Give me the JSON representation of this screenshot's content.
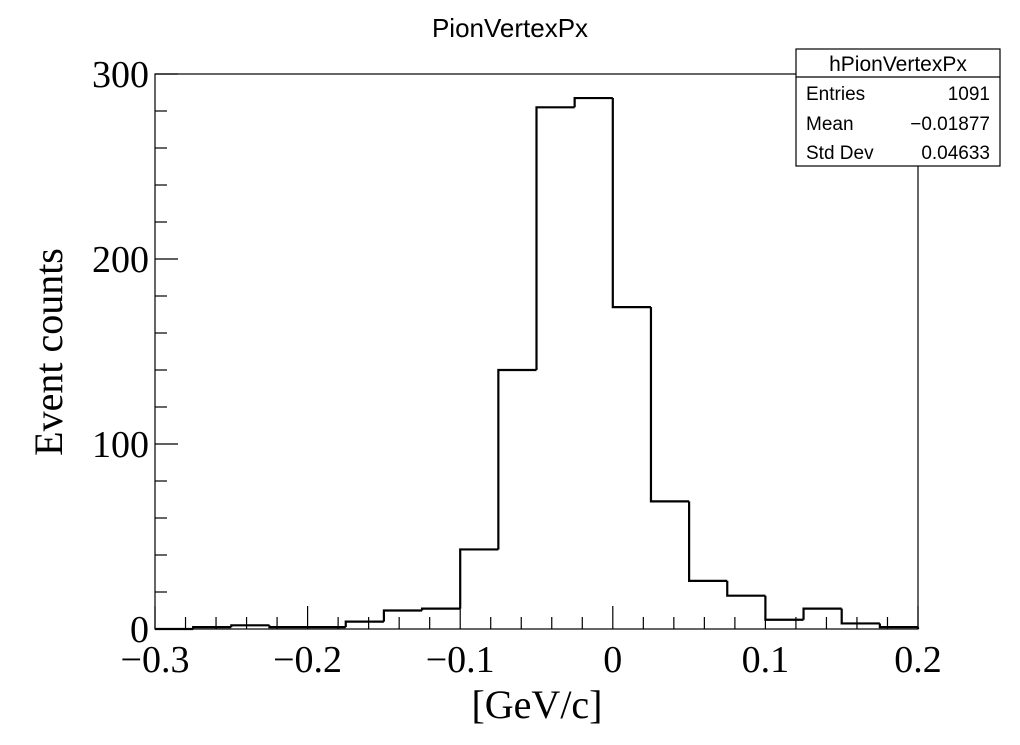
{
  "chart_data": {
    "type": "bar",
    "title": "PionVertexPx",
    "xlabel": "[GeV/c]",
    "ylabel": "Event counts",
    "xlim": [
      -0.3,
      0.2
    ],
    "ylim": [
      0,
      300
    ],
    "bin_width": 0.025,
    "x_ticks": [
      {
        "value": -0.3,
        "label": "−0.3"
      },
      {
        "value": -0.2,
        "label": "−0.2"
      },
      {
        "value": -0.1,
        "label": "−0.1"
      },
      {
        "value": 0,
        "label": "0"
      },
      {
        "value": 0.1,
        "label": "0.1"
      },
      {
        "value": 0.2,
        "label": "0.2"
      }
    ],
    "y_ticks": [
      {
        "value": 0,
        "label": "0"
      },
      {
        "value": 100,
        "label": "100"
      },
      {
        "value": 200,
        "label": "200"
      },
      {
        "value": 300,
        "label": "300"
      }
    ],
    "bins": [
      {
        "low": -0.3,
        "high": -0.275,
        "count": 0
      },
      {
        "low": -0.275,
        "high": -0.25,
        "count": 1
      },
      {
        "low": -0.25,
        "high": -0.225,
        "count": 2
      },
      {
        "low": -0.225,
        "high": -0.2,
        "count": 1
      },
      {
        "low": -0.2,
        "high": -0.175,
        "count": 1
      },
      {
        "low": -0.175,
        "high": -0.15,
        "count": 4
      },
      {
        "low": -0.15,
        "high": -0.125,
        "count": 10
      },
      {
        "low": -0.125,
        "high": -0.1,
        "count": 11
      },
      {
        "low": -0.1,
        "high": -0.075,
        "count": 43
      },
      {
        "low": -0.075,
        "high": -0.05,
        "count": 140
      },
      {
        "low": -0.05,
        "high": -0.025,
        "count": 282
      },
      {
        "low": -0.025,
        "high": 0,
        "count": 287
      },
      {
        "low": 0,
        "high": 0.025,
        "count": 174
      },
      {
        "low": 0.025,
        "high": 0.05,
        "count": 69
      },
      {
        "low": 0.05,
        "high": 0.075,
        "count": 26
      },
      {
        "low": 0.075,
        "high": 0.1,
        "count": 18
      },
      {
        "low": 0.1,
        "high": 0.125,
        "count": 5
      },
      {
        "low": 0.125,
        "high": 0.15,
        "count": 11
      },
      {
        "low": 0.15,
        "high": 0.175,
        "count": 3
      },
      {
        "low": 0.175,
        "high": 0.2,
        "count": 1
      }
    ],
    "line_color": "#000000",
    "grid": false
  },
  "stats_box": {
    "name": "hPionVertexPx",
    "rows": [
      {
        "label": "Entries",
        "value": "1091"
      },
      {
        "label": "Mean",
        "value": "−0.01877"
      },
      {
        "label": "Std Dev",
        "value": "0.04633"
      }
    ]
  }
}
